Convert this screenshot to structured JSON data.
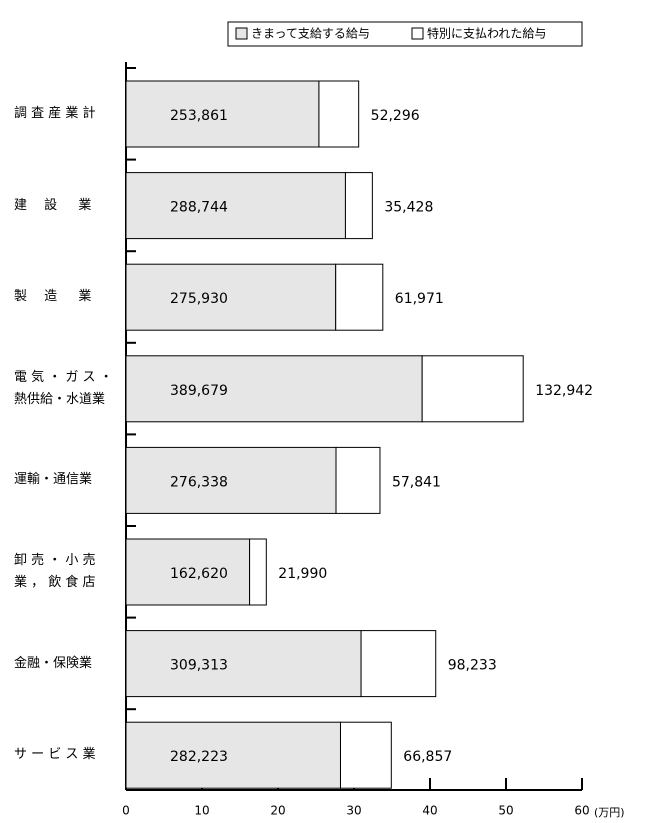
{
  "chart_data": {
    "type": "stacked-barh",
    "xlabel": "(万円)",
    "categories": [
      "調 査 産 業 計",
      "建　 設 　 業",
      "製　 造 　 業",
      "電 気 ・ ガ ス ・\n熱供給・水道業",
      "運輸・通信業",
      "卸 売 ・ 小 売\n業 ， 飲 食 店",
      "金融・保険業",
      "サ ー ビ ス 業"
    ],
    "series": [
      {
        "name": "きまって支給する給与",
        "color": "#e6e6e6",
        "values": [
          25.3861,
          28.8744,
          27.593,
          38.9679,
          27.6338,
          16.262,
          30.9313,
          28.2223
        ],
        "value_labels": [
          "253,861",
          "288,744",
          "275,930",
          "389,679",
          "276,338",
          "162,620",
          "309,313",
          "282,223"
        ]
      },
      {
        "name": "特別に支払われた給与",
        "color": "#ffffff",
        "values": [
          5.2296,
          3.5428,
          6.1971,
          13.2942,
          5.7841,
          2.199,
          9.8233,
          6.6857
        ],
        "value_labels": [
          "52,296",
          "35,428",
          "61,971",
          "132,942",
          "57,841",
          "21,990",
          "98,233",
          "66,857"
        ]
      }
    ],
    "xlim": [
      0,
      60
    ],
    "xticks": [
      0,
      10,
      20,
      30,
      40,
      50,
      60
    ]
  }
}
